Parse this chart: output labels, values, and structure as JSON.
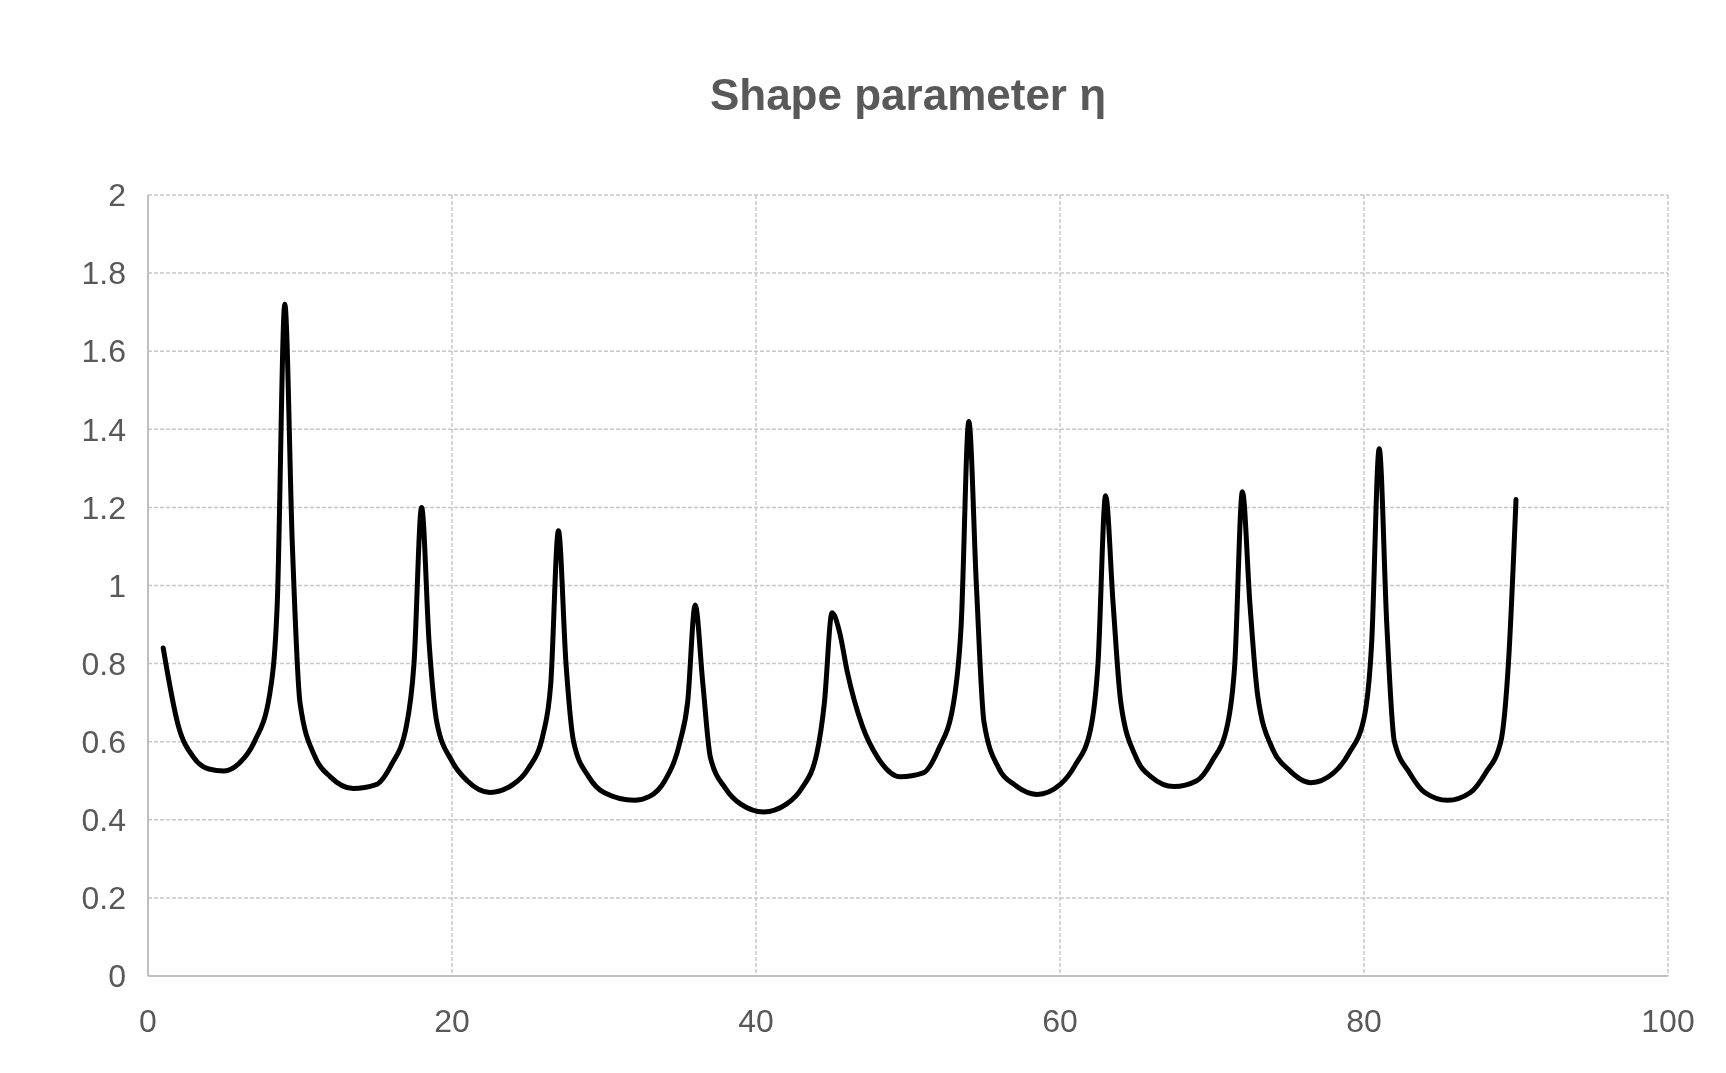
{
  "chart_data": {
    "type": "line",
    "title": "Shape parameter η",
    "x": [
      1,
      2,
      3,
      4,
      5,
      6,
      7,
      8,
      8.5,
      9,
      9.5,
      10,
      11,
      12,
      13.5,
      15,
      16,
      17,
      17.5,
      18,
      18.5,
      19,
      20,
      21,
      22.5,
      24,
      25,
      26,
      26.5,
      27,
      27.5,
      28,
      29,
      30,
      32,
      33,
      34,
      35,
      35.5,
      36,
      36.5,
      37,
      38,
      39,
      40.5,
      42,
      43,
      44,
      44.5,
      45,
      45.5,
      46,
      47,
      48,
      49.5,
      51,
      52,
      53,
      53.5,
      54,
      54.5,
      55,
      56,
      57,
      58.5,
      60,
      61,
      62,
      62.5,
      63,
      63.5,
      64,
      65,
      66,
      67.5,
      69,
      70,
      71,
      71.5,
      72,
      72.5,
      73,
      74,
      75,
      76.5,
      78,
      79,
      80,
      80.5,
      81,
      81.5,
      82,
      83,
      84,
      85.5,
      87,
      88,
      89,
      89.5,
      90
    ],
    "series": [
      {
        "color": "#000000",
        "values": [
          0.84,
          0.64,
          0.56,
          0.53,
          0.525,
          0.545,
          0.6,
          0.72,
          0.95,
          1.72,
          1.1,
          0.7,
          0.56,
          0.51,
          0.48,
          0.49,
          0.54,
          0.64,
          0.8,
          1.2,
          0.85,
          0.65,
          0.55,
          0.5,
          0.47,
          0.49,
          0.53,
          0.62,
          0.75,
          1.14,
          0.8,
          0.6,
          0.51,
          0.47,
          0.45,
          0.46,
          0.5,
          0.6,
          0.7,
          0.95,
          0.75,
          0.56,
          0.48,
          0.44,
          0.42,
          0.44,
          0.48,
          0.57,
          0.7,
          0.93,
          0.88,
          0.78,
          0.64,
          0.56,
          0.51,
          0.52,
          0.58,
          0.7,
          0.9,
          1.42,
          1.0,
          0.65,
          0.53,
          0.49,
          0.465,
          0.49,
          0.54,
          0.63,
          0.8,
          1.23,
          0.95,
          0.7,
          0.56,
          0.51,
          0.485,
          0.5,
          0.55,
          0.64,
          0.8,
          1.24,
          0.95,
          0.72,
          0.58,
          0.53,
          0.495,
          0.52,
          0.57,
          0.66,
          0.85,
          1.35,
          0.9,
          0.6,
          0.52,
          0.47,
          0.45,
          0.47,
          0.52,
          0.6,
          0.8,
          1.22
        ]
      }
    ],
    "xlim": [
      0,
      100
    ],
    "xticks": [
      0,
      20,
      40,
      60,
      80,
      100
    ],
    "ylim": [
      0,
      2
    ],
    "yticks": [
      0,
      0.2,
      0.4,
      0.6,
      0.8,
      1,
      1.2,
      1.4,
      1.6,
      1.8,
      2
    ],
    "grid": true,
    "marker": "none",
    "line_style": "solid"
  }
}
